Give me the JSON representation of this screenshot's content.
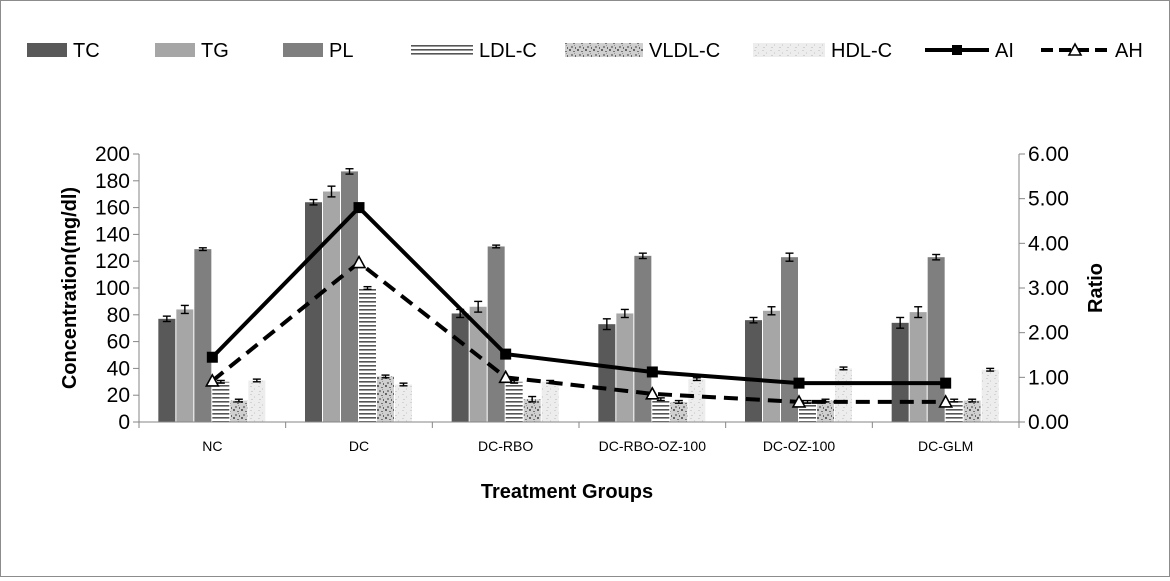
{
  "chart_data": {
    "type": "bar",
    "title": "",
    "xlabel": "Treatment Groups",
    "ylabel": "Concentration(mg/dl)",
    "y2label": "Ratio",
    "categories": [
      "NC",
      "DC",
      "DC-RBO",
      "DC-RBO-OZ-100",
      "DC-OZ-100",
      "DC-GLM"
    ],
    "ylim": [
      0,
      200
    ],
    "yticks": [
      "0",
      "20",
      "40",
      "60",
      "80",
      "100",
      "120",
      "140",
      "160",
      "180",
      "200"
    ],
    "y2lim": [
      0,
      6
    ],
    "y2ticks": [
      "0.00",
      "1.00",
      "2.00",
      "3.00",
      "4.00",
      "5.00",
      "6.00"
    ],
    "legend_position": "top",
    "grid": false,
    "series": [
      {
        "name": "TC",
        "kind": "bar",
        "pattern": "solid",
        "color": "#595959",
        "values": [
          77,
          164,
          81,
          73,
          76,
          74
        ],
        "errors": [
          2,
          2,
          3,
          4,
          2,
          4
        ]
      },
      {
        "name": "TG",
        "kind": "bar",
        "pattern": "solid",
        "color": "#a6a6a6",
        "values": [
          84,
          172,
          86,
          81,
          83,
          82
        ],
        "errors": [
          3,
          4,
          4,
          3,
          3,
          4
        ]
      },
      {
        "name": "PL",
        "kind": "bar",
        "pattern": "solid",
        "color": "#7f7f7f",
        "values": [
          129,
          187,
          131,
          124,
          123,
          123
        ],
        "errors": [
          1,
          2,
          1,
          2,
          3,
          2
        ]
      },
      {
        "name": "LDL-C",
        "kind": "bar",
        "pattern": "horizontal-lines",
        "color": "#7f7f7f",
        "values": [
          30,
          100,
          30,
          17,
          15,
          16
        ],
        "errors": [
          1,
          1,
          1,
          1,
          1,
          1
        ]
      },
      {
        "name": "VLDL-C",
        "kind": "bar",
        "pattern": "speckle",
        "color": "#9a9a9a",
        "values": [
          16,
          34,
          17,
          15,
          16,
          16
        ],
        "errors": [
          1,
          1,
          2,
          1,
          1,
          1
        ]
      },
      {
        "name": "HDL-C",
        "kind": "bar",
        "pattern": "light-speckle",
        "color": "#dcdcdc",
        "values": [
          31,
          28,
          30,
          32,
          40,
          39
        ],
        "errors": [
          1,
          1,
          1,
          1,
          1,
          1
        ]
      },
      {
        "name": "AI",
        "kind": "line",
        "axis": "right",
        "style": "solid",
        "marker": "square",
        "color": "#000000",
        "values": [
          1.45,
          4.8,
          1.52,
          1.12,
          0.87,
          0.87
        ]
      },
      {
        "name": "AH",
        "kind": "line",
        "axis": "right",
        "style": "dashed",
        "marker": "triangle",
        "color": "#000000",
        "values": [
          0.92,
          3.57,
          1.0,
          0.63,
          0.45,
          0.45
        ]
      }
    ]
  }
}
